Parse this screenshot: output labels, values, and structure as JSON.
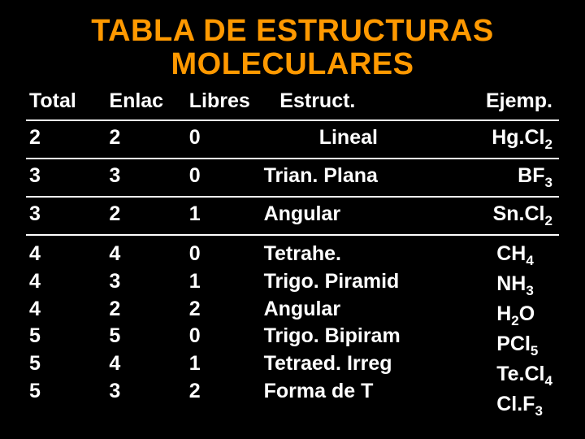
{
  "title_line1": "TABLA DE ESTRUCTURAS",
  "title_line2": "MOLECULARES",
  "columns": {
    "total": "Total",
    "enlac": "Enlac",
    "libres": "Libres",
    "estruct": "Estruct.",
    "ejemp": "Ejemp."
  },
  "rows": [
    {
      "total": "2",
      "enlac": "2",
      "libres": "0",
      "estruct": "Lineal",
      "ejemp_base": "Hg.Cl",
      "ejemp_sub": "2"
    },
    {
      "total": "3",
      "enlac": "3",
      "libres": "0",
      "estruct": "Trian. Plana",
      "ejemp_base": "BF",
      "ejemp_sub": "3"
    },
    {
      "total": "3",
      "enlac": "2",
      "libres": "1",
      "estruct": "Angular",
      "ejemp_base": "Sn.Cl",
      "ejemp_sub": "2"
    }
  ],
  "multi": {
    "total": [
      "4",
      "4",
      "4",
      "5",
      "5",
      "5"
    ],
    "enlac": [
      "4",
      "3",
      "2",
      "5",
      "4",
      "3"
    ],
    "libres": [
      "0",
      "1",
      "2",
      "0",
      "1",
      "2"
    ],
    "estruct": [
      "Tetrahe.",
      "Trigo. Piramid",
      "Angular",
      "Trigo. Bipiram",
      "Tetraed. Irreg",
      "Forma de T"
    ],
    "ejemp": [
      {
        "base": "CH",
        "sub": "4"
      },
      {
        "base": "NH",
        "sub": "3"
      },
      {
        "base": "H",
        "mid": "2",
        "tail": "O"
      },
      {
        "base": "PCl",
        "sub": "5"
      },
      {
        "base": "Te.Cl",
        "sub": "4"
      },
      {
        "base": "Cl.F",
        "sub": "3"
      }
    ]
  },
  "colors": {
    "background": "#000000",
    "title": "#ff9900",
    "text": "#ffffff",
    "border": "#ffffff"
  },
  "font_family": "Comic Sans MS",
  "title_fontsize_pt": 38,
  "body_fontsize_pt": 25
}
